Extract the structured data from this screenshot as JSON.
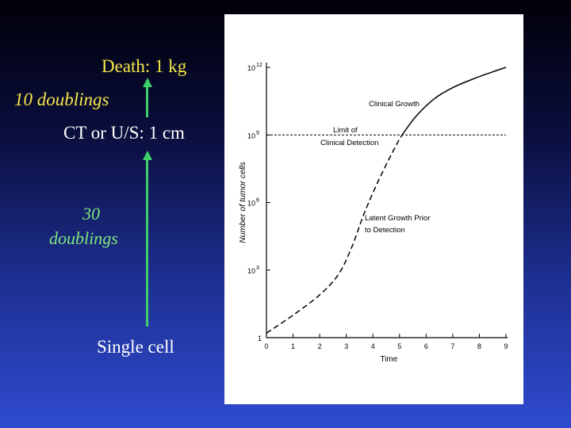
{
  "slide": {
    "death_label": "Death: 1 kg",
    "ten_doublings_label": "10 doublings",
    "ct_label": "CT or U/S: 1 cm",
    "thirty_label_line1": "30",
    "thirty_label_line2": "doublings",
    "single_cell_label": "Single cell",
    "colors": {
      "yellow_text": "#f5e84a",
      "green_text": "#7ee87e",
      "arrow": "#3fcf6a"
    }
  },
  "chart_data": {
    "type": "line",
    "ylabel": "Number of tumor cells",
    "xlabel": "Time",
    "xlim": [
      0,
      9
    ],
    "y_scale": "log",
    "ylim_exponent": [
      0,
      12
    ],
    "x_ticks": [
      "0",
      "1",
      "2",
      "3",
      "4",
      "5",
      "6",
      "7",
      "8",
      "9"
    ],
    "y_ticks": [
      {
        "base": "1",
        "sup": "",
        "exponent": 0
      },
      {
        "base": "10",
        "sup": "3",
        "exponent": 3
      },
      {
        "base": "10",
        "sup": "6",
        "exponent": 6
      },
      {
        "base": "10",
        "sup": "9",
        "exponent": 9
      },
      {
        "base": "10",
        "sup": "12",
        "exponent": 12
      }
    ],
    "threshold": {
      "exponent": 9,
      "style": "dashed"
    },
    "annotations": {
      "clinical_growth": "Clinical Growth",
      "limit_line1": "Limit of",
      "limit_line2": "Clinical Detection",
      "latent_line1": "Latent Growth Prior",
      "latent_line2": "to Detection"
    },
    "series": [
      {
        "style": "dashed",
        "points": [
          [
            0,
            0.2
          ],
          [
            1,
            1.0
          ],
          [
            2,
            1.9
          ],
          [
            2.7,
            2.8
          ],
          [
            3.2,
            4.0
          ],
          [
            3.7,
            5.6
          ],
          [
            4.3,
            7.2
          ],
          [
            4.9,
            8.6
          ],
          [
            5.1,
            9.0
          ]
        ]
      },
      {
        "style": "solid",
        "points": [
          [
            5.1,
            9.0
          ],
          [
            5.6,
            9.8
          ],
          [
            6.3,
            10.6
          ],
          [
            7.0,
            11.1
          ],
          [
            7.8,
            11.5
          ],
          [
            8.5,
            11.8
          ],
          [
            9.0,
            12.0
          ]
        ]
      }
    ]
  }
}
